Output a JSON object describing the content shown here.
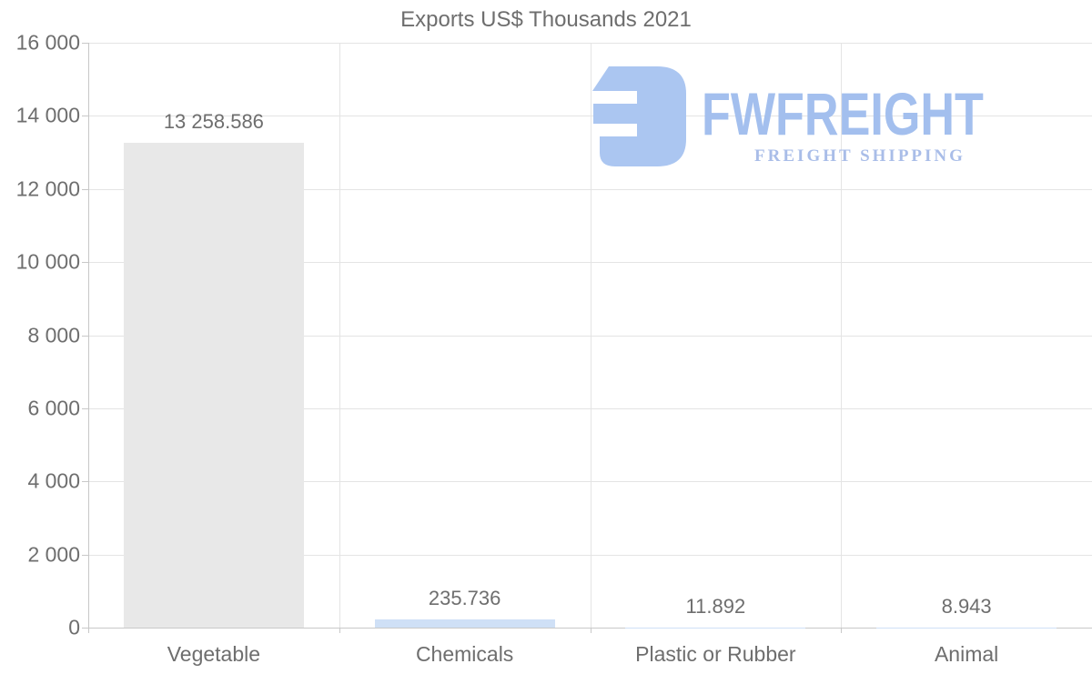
{
  "title": "Exports US$ Thousands 2021",
  "watermark": {
    "brand": "FWFREIGHT",
    "tagline": "FREIGHT SHIPPING",
    "icon": "fwfreight-logo-icon",
    "brand_color": "#a3bfee",
    "tagline_color": "#a9bde8",
    "icon_color": "#abc6f1"
  },
  "chart_data": {
    "type": "bar",
    "title": "Exports US$ Thousands 2021",
    "categories": [
      "Vegetable",
      "Chemicals",
      "Plastic or Rubber",
      "Animal"
    ],
    "values": [
      13258.586,
      235.736,
      11.892,
      8.943
    ],
    "value_labels": [
      "13 258.586",
      "235.736",
      "11.892",
      "8.943"
    ],
    "bar_colors": [
      "#e8e8e8",
      "#cfe0f6",
      "#cfe0f6",
      "#cfe0f6"
    ],
    "xlabel": "",
    "ylabel": "",
    "ylim": [
      0,
      16000
    ],
    "ytick_values": [
      0,
      2000,
      4000,
      6000,
      8000,
      10000,
      12000,
      14000,
      16000
    ],
    "ytick_labels": [
      "0",
      "2 000",
      "4 000",
      "6 000",
      "8 000",
      "10 000",
      "12 000",
      "14 000",
      "16 000"
    ],
    "grid": true,
    "legend": false,
    "text_color": "#6e6e6e",
    "gridline_color": "#e4e4e4",
    "axis_color": "#c8c8c8",
    "background_color": "#ffffff"
  }
}
